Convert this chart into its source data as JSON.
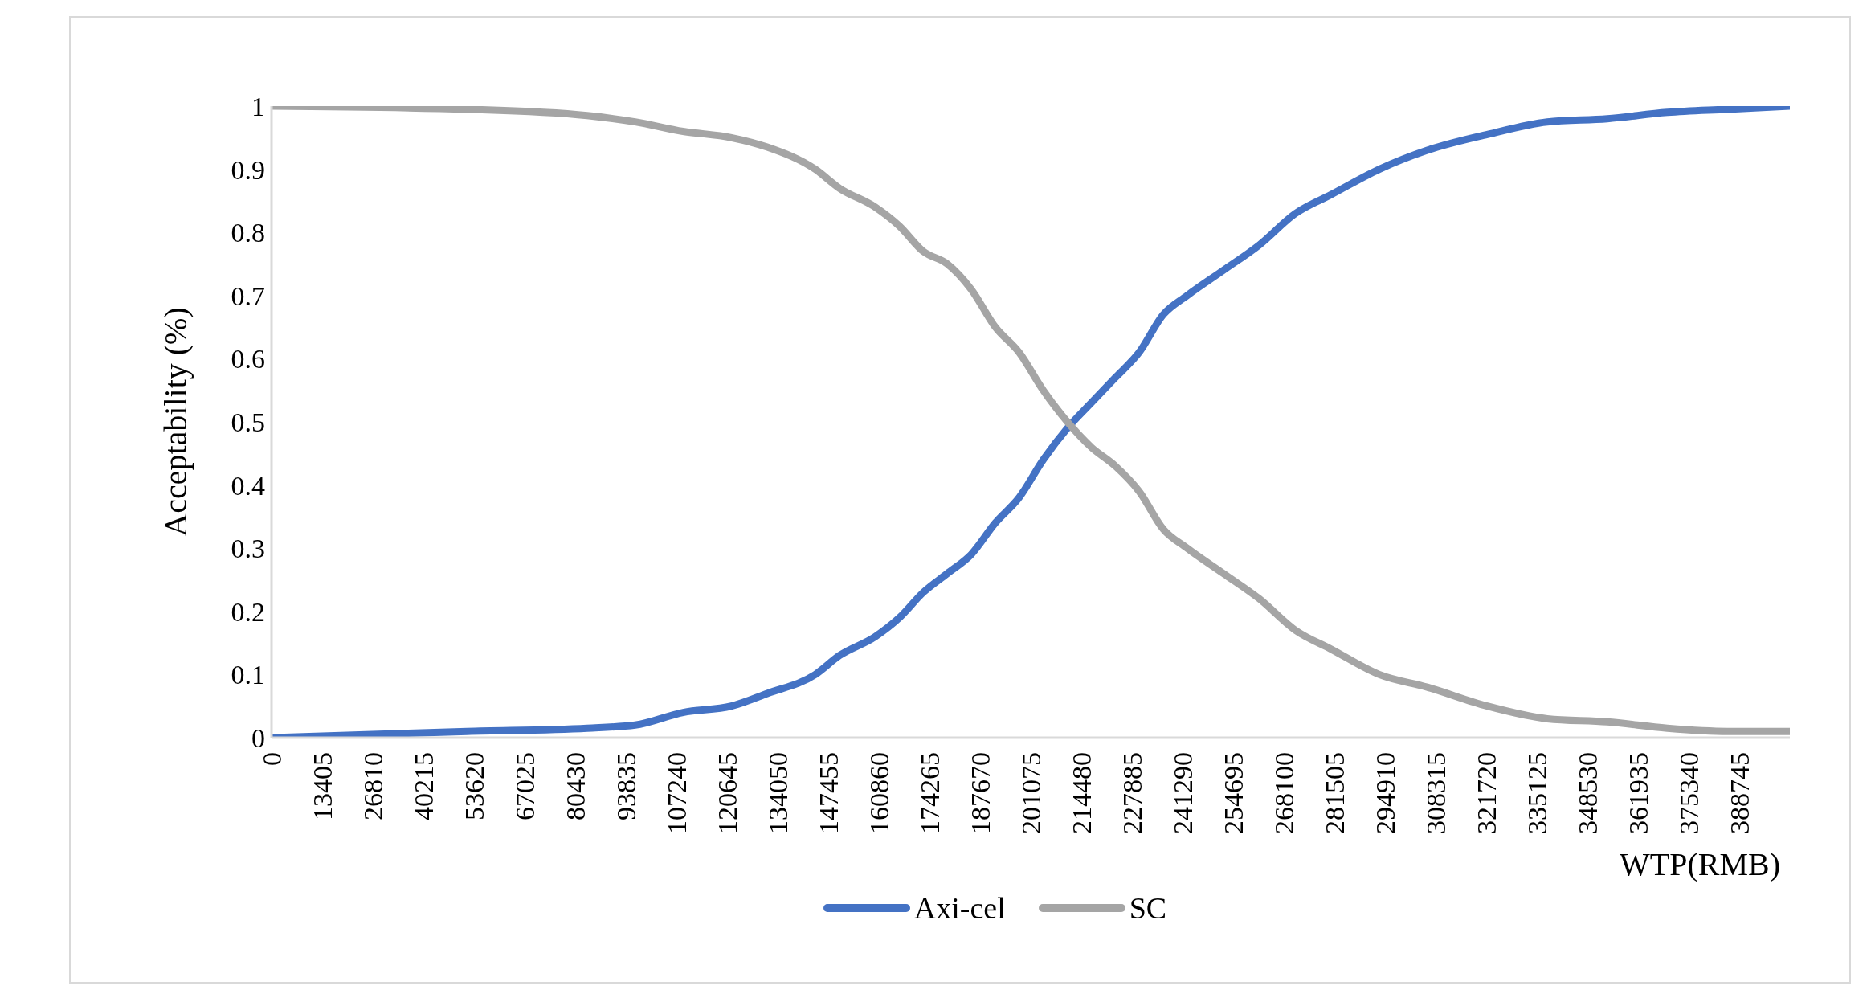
{
  "chart_data": {
    "type": "line",
    "xlabel": "WTP(RMB)",
    "ylabel": "Acceptability (%)",
    "x": [
      0,
      51800,
      83600,
      96300,
      109000,
      121800,
      131300,
      144000,
      150400,
      159900,
      166300,
      172600,
      179000,
      185300,
      191700,
      198000,
      204400,
      210800,
      217100,
      223500,
      229800,
      236200,
      242500,
      252100,
      261600,
      271200,
      280700,
      293400,
      306100,
      322000,
      337900,
      353800,
      369700,
      385600,
      402150
    ],
    "series": [
      {
        "name": "Axi-cel",
        "color": "#4472c4",
        "values": [
          0,
          0.01,
          0.015,
          0.02,
          0.04,
          0.05,
          0.07,
          0.1,
          0.13,
          0.16,
          0.19,
          0.23,
          0.26,
          0.29,
          0.34,
          0.38,
          0.44,
          0.49,
          0.53,
          0.57,
          0.61,
          0.67,
          0.7,
          0.74,
          0.78,
          0.83,
          0.86,
          0.9,
          0.93,
          0.955,
          0.975,
          0.98,
          0.99,
          0.995,
          1
        ]
      },
      {
        "name": "SC",
        "color": "#a5a5a5",
        "values": [
          1,
          0.995,
          0.985,
          0.975,
          0.96,
          0.95,
          0.935,
          0.9,
          0.87,
          0.84,
          0.81,
          0.77,
          0.75,
          0.71,
          0.65,
          0.61,
          0.55,
          0.5,
          0.46,
          0.43,
          0.39,
          0.33,
          0.3,
          0.26,
          0.22,
          0.17,
          0.14,
          0.1,
          0.08,
          0.05,
          0.03,
          0.025,
          0.015,
          0.01,
          0.01
        ]
      }
    ],
    "xlim": [
      0,
      402150
    ],
    "xticks": [
      0,
      13405,
      26810,
      40215,
      53620,
      67025,
      80430,
      93835,
      107240,
      120645,
      134050,
      147455,
      160860,
      174265,
      187670,
      201075,
      214480,
      227885,
      241290,
      254695,
      268100,
      281505,
      294910,
      308315,
      321720,
      335125,
      348530,
      361935,
      375340,
      388745
    ],
    "ylim": [
      0,
      1
    ],
    "yticks": [
      0,
      0.1,
      0.2,
      0.3,
      0.4,
      0.5,
      0.6,
      0.7,
      0.8,
      0.9,
      1
    ],
    "grid": false,
    "legend": "bottom",
    "marker": "none",
    "line_style": "solid"
  }
}
